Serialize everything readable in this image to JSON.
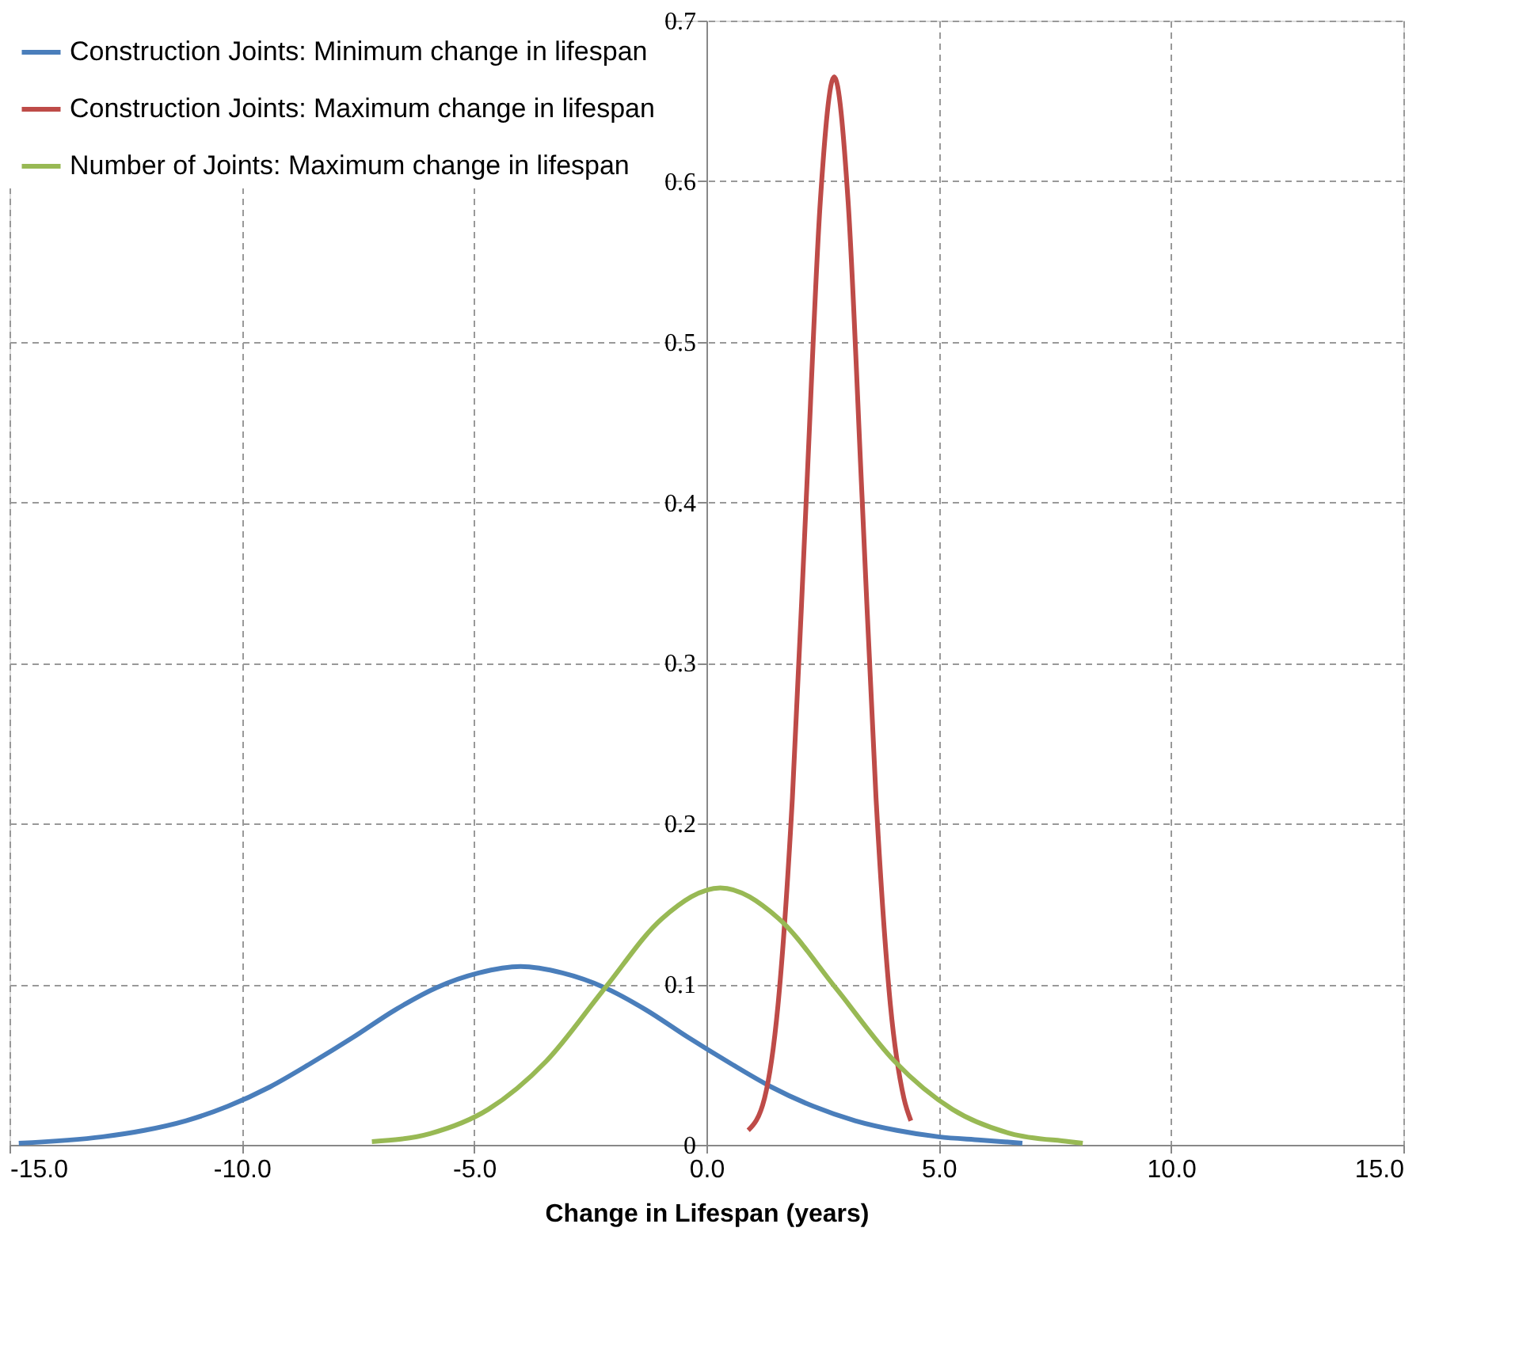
{
  "chart_data": {
    "type": "line",
    "xlabel": "Change in Lifespan (years)",
    "xlim": [
      -15,
      15
    ],
    "ylim": [
      0,
      0.7
    ],
    "xticks": [
      {
        "value": -15,
        "label": "-15.0"
      },
      {
        "value": -10,
        "label": "-10.0"
      },
      {
        "value": -5,
        "label": "-5.0"
      },
      {
        "value": 0,
        "label": "0.0"
      },
      {
        "value": 5,
        "label": "5.0"
      },
      {
        "value": 10,
        "label": "10.0"
      },
      {
        "value": 15,
        "label": "15.0"
      }
    ],
    "yticks": [
      0,
      0.1,
      0.2,
      0.3,
      0.4,
      0.5,
      0.6,
      0.7
    ],
    "grid": true,
    "legend": "top left",
    "line_style": "solid",
    "marker": "none",
    "series": [
      {
        "name": "Construction Joints: Minimum change in lifespan",
        "color": "#4a7ebb",
        "x": [
          -14.8,
          -13,
          -12.1,
          -11.2,
          -10.3,
          -9.4,
          -8.5,
          -7.6,
          -6.7,
          -5.8,
          -4.9,
          -4,
          -3.1,
          -2.2,
          -1.3,
          -0.4,
          0.5,
          1.4,
          2.3,
          3.2,
          4.1,
          5,
          5.9,
          6.8
        ],
        "values": [
          0.001,
          0.005,
          0.009,
          0.015,
          0.024,
          0.036,
          0.051,
          0.067,
          0.084,
          0.098,
          0.107,
          0.111,
          0.107,
          0.098,
          0.084,
          0.067,
          0.051,
          0.036,
          0.024,
          0.015,
          0.009,
          0.005,
          0.003,
          0.001
        ]
      },
      {
        "name": "Construction Joints: Maximum change in lifespan",
        "color": "#be4b48",
        "x": [
          0.9,
          1.25,
          1.55,
          1.85,
          2.15,
          2.45,
          2.75,
          3.05,
          3.35,
          3.65,
          3.95,
          4.25,
          4.4
        ],
        "values": [
          0.009,
          0.029,
          0.09,
          0.216,
          0.403,
          0.587,
          0.665,
          0.587,
          0.403,
          0.216,
          0.09,
          0.029,
          0.015
        ]
      },
      {
        "name": "Number of Joints: Maximum change in lifespan",
        "color": "#98b954",
        "x": [
          -7.2,
          -5.95,
          -4.7,
          -3.45,
          -2.2,
          -0.95,
          0.3,
          1.55,
          2.8,
          4.05,
          5.3,
          6.55,
          7.8,
          8.1
        ],
        "values": [
          0.002,
          0.007,
          0.022,
          0.052,
          0.097,
          0.141,
          0.16,
          0.141,
          0.097,
          0.052,
          0.022,
          0.007,
          0.002,
          0.001
        ]
      }
    ]
  }
}
